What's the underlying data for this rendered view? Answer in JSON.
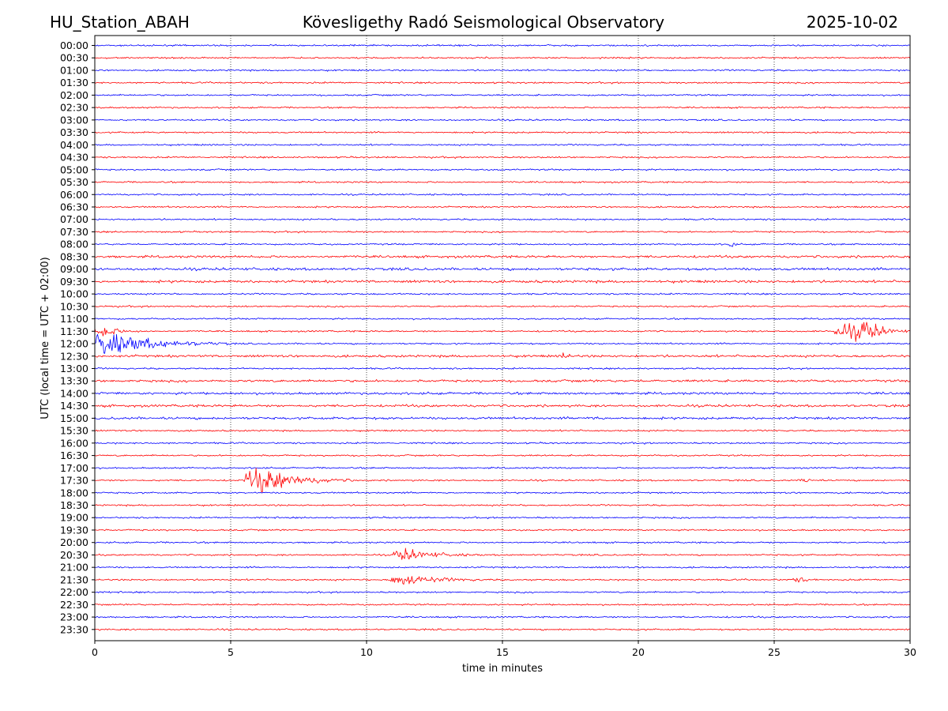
{
  "header": {
    "station": "HU_Station_ABAH",
    "observatory": "Kövesligethy Radó Seismological Observatory",
    "date": "2025-10-02"
  },
  "chart_data": {
    "type": "line",
    "title": "Kövesligethy Radó Seismological Observatory",
    "xlabel": "time in minutes",
    "ylabel": "UTC (local time = UTC + 02:00)",
    "xlim": [
      0,
      30
    ],
    "x_ticks": [
      0,
      5,
      10,
      15,
      20,
      25,
      30
    ],
    "x_tick_labels": [
      "0",
      "5",
      "10",
      "15",
      "20",
      "25",
      "30"
    ],
    "grid": "vertical dotted lines at x ticks",
    "colors": {
      "even_row": "#0000ff",
      "odd_row": "#ff0000",
      "axis": "#000000",
      "grid": "#000000"
    },
    "rows": [
      "00:00",
      "00:30",
      "01:00",
      "01:30",
      "02:00",
      "02:30",
      "03:00",
      "03:30",
      "04:00",
      "04:30",
      "05:00",
      "05:30",
      "06:00",
      "06:30",
      "07:00",
      "07:30",
      "08:00",
      "08:30",
      "09:00",
      "09:30",
      "10:00",
      "10:30",
      "11:00",
      "11:30",
      "12:00",
      "12:30",
      "13:00",
      "13:30",
      "14:00",
      "14:30",
      "15:00",
      "15:30",
      "16:00",
      "16:30",
      "17:00",
      "17:30",
      "18:00",
      "18:30",
      "19:00",
      "19:30",
      "20:00",
      "20:30",
      "21:00",
      "21:30",
      "22:00",
      "22:30",
      "23:00",
      "23:30"
    ],
    "baseline_noise": 0.8,
    "noisy_rows": {
      "08:30": 1.2,
      "09:00": 1.3,
      "09:30": 1.3,
      "12:30": 1.2,
      "13:30": 1.2,
      "14:00": 1.2,
      "14:30": 1.2,
      "15:00": 1.2
    },
    "events": [
      {
        "row": "11:30",
        "start_min": 0.0,
        "peak_min": 0.4,
        "end_min": 1.8,
        "amplitude": 6
      },
      {
        "row": "12:00",
        "start_min": 0.0,
        "peak_min": 0.3,
        "end_min": 5.0,
        "amplitude": 14
      },
      {
        "row": "11:30",
        "start_min": 27.2,
        "peak_min": 28.5,
        "end_min": 30.0,
        "amplitude": 11
      },
      {
        "row": "08:00",
        "start_min": 23.3,
        "peak_min": 23.4,
        "end_min": 23.6,
        "amplitude": 7
      },
      {
        "row": "12:30",
        "start_min": 17.2,
        "peak_min": 17.3,
        "end_min": 17.6,
        "amplitude": 5
      },
      {
        "row": "17:30",
        "start_min": 5.5,
        "peak_min": 6.2,
        "end_min": 9.5,
        "amplitude": 14
      },
      {
        "row": "17:30",
        "start_min": 26.0,
        "peak_min": 26.2,
        "end_min": 26.8,
        "amplitude": 3
      },
      {
        "row": "20:30",
        "start_min": 11.0,
        "peak_min": 11.3,
        "end_min": 14.2,
        "amplitude": 7
      },
      {
        "row": "21:30",
        "start_min": 10.9,
        "peak_min": 11.2,
        "end_min": 14.5,
        "amplitude": 7
      },
      {
        "row": "21:30",
        "start_min": 25.5,
        "peak_min": 26.0,
        "end_min": 26.8,
        "amplitude": 2
      },
      {
        "row": "15:00",
        "start_min": 18.3,
        "peak_min": 18.5,
        "end_min": 18.8,
        "amplitude": 2.5
      }
    ]
  }
}
